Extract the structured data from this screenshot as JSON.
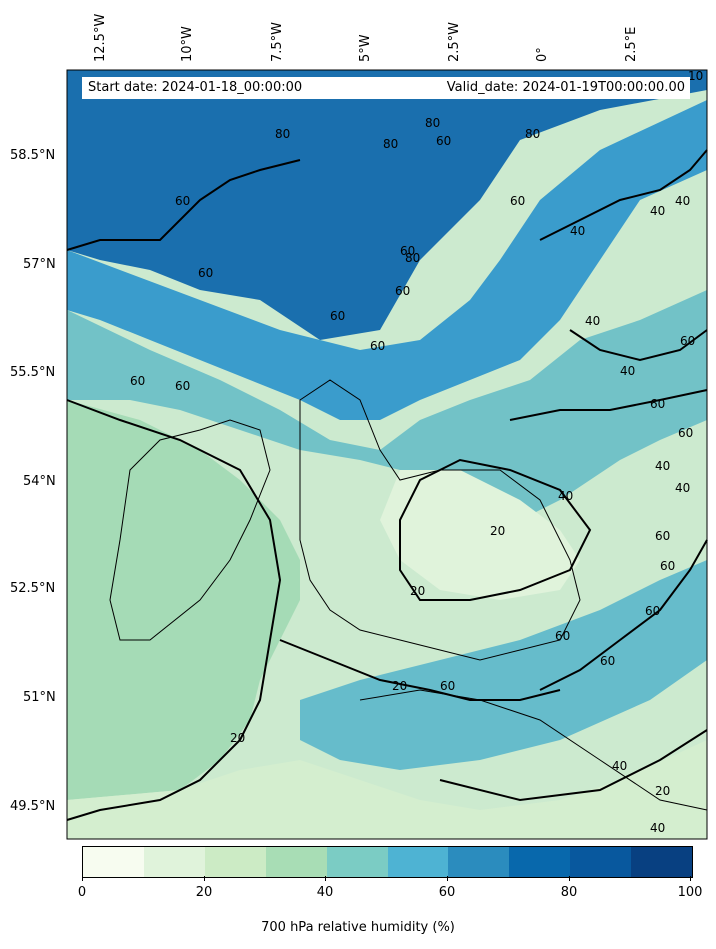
{
  "header": {
    "start_date": "Start date: 2024-01-18_00:00:00",
    "valid_date": "Valid_date: 2024-01-19T00:00:00.00"
  },
  "lon_labels": [
    "12.5°W",
    "10°W",
    "7.5°W",
    "5°W",
    "2.5°W",
    "0°",
    "2.5°E"
  ],
  "lat_labels": [
    "58.5°N",
    "57°N",
    "55.5°N",
    "54°N",
    "52.5°N",
    "51°N",
    "49.5°N"
  ],
  "contour_labels": [
    "10",
    "80",
    "80",
    "80",
    "60",
    "80",
    "60",
    "60",
    "40",
    "40",
    "40",
    "60",
    "60",
    "60",
    "80",
    "60",
    "60",
    "60",
    "60",
    "40",
    "60",
    "40",
    "40",
    "40",
    "60",
    "60",
    "60",
    "40",
    "20",
    "20",
    "20",
    "60",
    "60",
    "60",
    "60",
    "60",
    "20",
    "40",
    "20",
    "40"
  ],
  "colorbar": {
    "label": "700 hPa relative humidity (%)",
    "ticks": [
      "0",
      "20",
      "40",
      "60",
      "80",
      "100"
    ],
    "colors": [
      "#f7fcf0",
      "#e0f3db",
      "#ccebc5",
      "#a8ddb5",
      "#7bccc4",
      "#4eb3d3",
      "#2b8cbe",
      "#0868ac",
      "#08589e",
      "#084081"
    ]
  },
  "map_colors": {
    "water": "#2b8cbe",
    "land": "#e0f3db"
  }
}
